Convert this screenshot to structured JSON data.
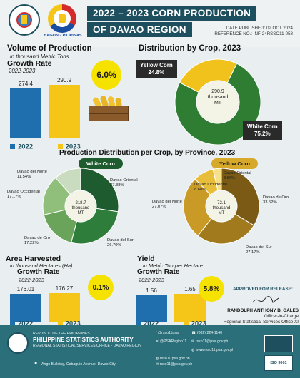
{
  "header": {
    "agency_logo_text": "PHILIPPINE STATISTICS AUTHORITY",
    "bagong_pilipinas": "BAGONG PILIPINAS",
    "title_line1": "2022 – 2023 CORN PRODUCTION",
    "title_line2": "OF DAVAO REGION",
    "date_published": "DATE PUBLISHED: 02 OCT 2024",
    "reference_no": "REFERENCE NO.: INF-24RSSO11-058"
  },
  "volume": {
    "title": "Volume of Production",
    "unit": "in thousand Metric Tons",
    "growth_title": "Growth Rate",
    "period": "2022-2023",
    "growth": "6.0%"
  },
  "distribution": {
    "title": "Distribution by Crop, 2023",
    "yellow_label": "Yellow Corn",
    "yellow_pct": "24.8%",
    "white_label": "White Corn",
    "white_pct": "75.2%",
    "center_value": "290.9",
    "center_unit": "thousand",
    "center_unit2": "MT"
  },
  "province": {
    "title": "Production Distribution per Crop, by Province, 2023",
    "white_pill": "White Corn",
    "yellow_pill": "Yellow Corn",
    "white_center": "218.7",
    "yellow_center": "72.1",
    "center_unit": "thousand",
    "center_unit2": "MT",
    "white_labels": [
      {
        "name": "Davao del Norte",
        "pct": "11.54%"
      },
      {
        "name": "Davao Occidental",
        "pct": "17.17%"
      },
      {
        "name": "Davao de Oro",
        "pct": "17.22%"
      },
      {
        "name": "Davao del Sur",
        "pct": "26.70%"
      },
      {
        "name": "Davao Oriental",
        "pct": "27.38%"
      }
    ],
    "yellow_labels": [
      {
        "name": "Davao Oriental",
        "pct": "3.56%"
      },
      {
        "name": "Davao Occidental",
        "pct": "8.68%"
      },
      {
        "name": "Davao de Oro",
        "pct": "33.52%"
      },
      {
        "name": "Davao del Norte",
        "pct": "27.07%"
      },
      {
        "name": "Davao del Sur",
        "pct": "27.17%"
      }
    ]
  },
  "area": {
    "title": "Area Harvested",
    "unit": "in thousand Hectares (Ha)",
    "growth_title": "Growth Rate",
    "period": "2022-2023",
    "growth": "0.1%"
  },
  "yield": {
    "title": "Yield",
    "unit": "in Metric Ton per Hectare",
    "growth_title": "Growth Rate",
    "period": "2022-2023",
    "growth": "5.8%"
  },
  "legend": {
    "y2022": "2022",
    "y2023": "2023"
  },
  "approval": {
    "label": "APPROVED FOR RELEASE:",
    "name": "RANDOLPH ANTHONY B. GALES",
    "position1": "Officer-in-Charge",
    "position2": "Regional Statistical Services Office XI"
  },
  "footer": {
    "republic": "REPUBLIC OF THE PHILIPPINES",
    "agency": "PHILIPPINE STATISTICS AUTHORITY",
    "office": "REGIONAL STATISTICAL SERVICES OFFICE - DAVAO REGION",
    "address": "Ango Building, Cabaguio Avenue, Davao City",
    "fb": "@rsso11psa",
    "x": "@PSARegion11",
    "phone": "(082) 224-1140",
    "email": "rsso11@psa.gov.ph",
    "web1": "www.rsso11.psa.gov.ph",
    "web2": "rsso11.psa.gov.ph",
    "web3": "rsso11@psa.gov.ph",
    "iso": "ISO 9001"
  },
  "colors": {
    "navy": "#1d4f5f",
    "blue_bar": "#1f6fae",
    "yellow_bar": "#f5c518",
    "white_corn": "#2e7d32",
    "yellow_corn": "#7a5a14",
    "accent_yellow": "#f6e200"
  },
  "chart_data": [
    {
      "type": "bar",
      "title": "Volume of Production",
      "categories": [
        "2022",
        "2023"
      ],
      "values": [
        274.4,
        290.9
      ],
      "ylabel": "in thousand Metric Tons",
      "ylim": [
        0,
        320
      ]
    },
    {
      "type": "pie",
      "title": "Distribution by Crop, 2023",
      "categories": [
        "Yellow Corn",
        "White Corn"
      ],
      "values": [
        24.8,
        75.2
      ]
    },
    {
      "type": "pie",
      "title": "White Corn",
      "categories": [
        "Davao Oriental",
        "Davao del Sur",
        "Davao de Oro",
        "Davao Occidental",
        "Davao del Norte"
      ],
      "values": [
        27.38,
        26.7,
        17.22,
        17.17,
        11.54
      ]
    },
    {
      "type": "pie",
      "title": "Yellow Corn",
      "categories": [
        "Davao de Oro",
        "Davao del Sur",
        "Davao del Norte",
        "Davao Occidental",
        "Davao Oriental"
      ],
      "values": [
        33.52,
        27.17,
        27.07,
        8.68,
        3.56
      ]
    },
    {
      "type": "bar",
      "title": "Area Harvested",
      "categories": [
        "2022",
        "2023"
      ],
      "values": [
        176.01,
        176.27
      ],
      "ylabel": "in thousand Hectares (Ha)",
      "ylim": [
        0,
        200
      ]
    },
    {
      "type": "bar",
      "title": "Yield",
      "categories": [
        "2022",
        "2023"
      ],
      "values": [
        1.56,
        1.65
      ],
      "ylabel": "in Metric Ton per Hectare",
      "ylim": [
        0,
        1.9
      ]
    }
  ]
}
